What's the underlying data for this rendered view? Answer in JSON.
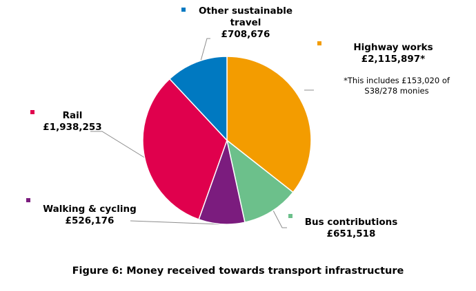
{
  "chart_data": {
    "type": "pie",
    "title": "Figure 6: Money received towards transport infrastructure",
    "slices": [
      {
        "name": "Highway works",
        "value_label": "£2,115,897*",
        "value": 2115897,
        "color": "#F39C00"
      },
      {
        "name": "Bus contributions",
        "value_label": "£651,518",
        "value": 651518,
        "color": "#6CC08B"
      },
      {
        "name": "Walking & cycling",
        "value_label": "£526,176",
        "value": 526176,
        "color": "#7B1C7E"
      },
      {
        "name": "Rail",
        "value_label": "£1,938,253",
        "value": 1938253,
        "color": "#E0004D"
      },
      {
        "name": "Other sustainable travel",
        "value_label": "£708,676",
        "value": 708676,
        "color": "#0079C1"
      }
    ],
    "footnote": "*This includes £153,020 of S38/278 monies",
    "start_angle_deg": 0,
    "direction": "clockwise"
  }
}
